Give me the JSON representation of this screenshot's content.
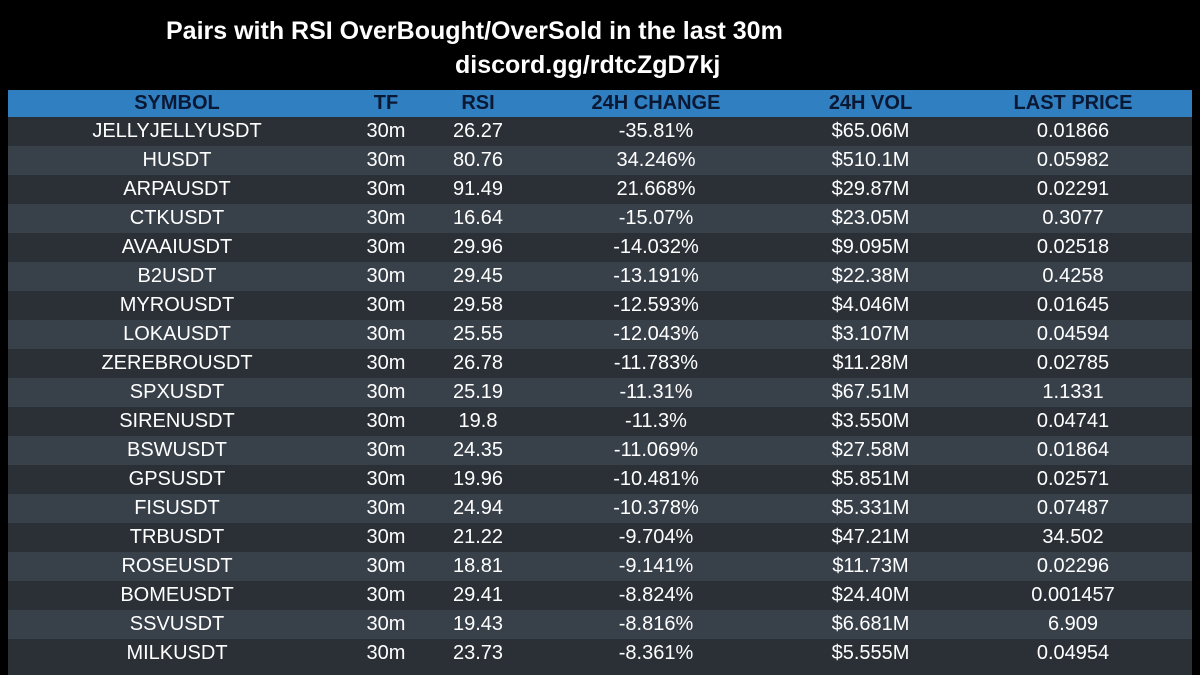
{
  "header": {
    "title": "Pairs with RSI OverBought/OverSold in the last 30m",
    "subtitle": "discord.gg/rdtcZgD7kj"
  },
  "colors": {
    "background": "#000000",
    "header_row": "#2f7fc1",
    "header_text": "#0b1833",
    "row_dark": "#2a3036",
    "row_light": "#38404a",
    "cell_text": "#ffffff"
  },
  "table": {
    "columns": [
      "SYMBOL",
      "TF",
      "RSI",
      "24H CHANGE",
      "24H VOL",
      "LAST PRICE"
    ],
    "rows": [
      [
        "JELLYJELLYUSDT",
        "30m",
        "26.27",
        "-35.81%",
        "$65.06M",
        "0.01866"
      ],
      [
        "HUSDT",
        "30m",
        "80.76",
        "34.246%",
        "$510.1M",
        "0.05982"
      ],
      [
        "ARPAUSDT",
        "30m",
        "91.49",
        "21.668%",
        "$29.87M",
        "0.02291"
      ],
      [
        "CTKUSDT",
        "30m",
        "16.64",
        "-15.07%",
        "$23.05M",
        "0.3077"
      ],
      [
        "AVAAIUSDT",
        "30m",
        "29.96",
        "-14.032%",
        "$9.095M",
        "0.02518"
      ],
      [
        "B2USDT",
        "30m",
        "29.45",
        "-13.191%",
        "$22.38M",
        "0.4258"
      ],
      [
        "MYROUSDT",
        "30m",
        "29.58",
        "-12.593%",
        "$4.046M",
        "0.01645"
      ],
      [
        "LOKAUSDT",
        "30m",
        "25.55",
        "-12.043%",
        "$3.107M",
        "0.04594"
      ],
      [
        "ZEREBROUSDT",
        "30m",
        "26.78",
        "-11.783%",
        "$11.28M",
        "0.02785"
      ],
      [
        "SPXUSDT",
        "30m",
        "25.19",
        "-11.31%",
        "$67.51M",
        "1.1331"
      ],
      [
        "SIRENUSDT",
        "30m",
        "19.8",
        "-11.3%",
        "$3.550M",
        "0.04741"
      ],
      [
        "BSWUSDT",
        "30m",
        "24.35",
        "-11.069%",
        "$27.58M",
        "0.01864"
      ],
      [
        "GPSUSDT",
        "30m",
        "19.96",
        "-10.481%",
        "$5.851M",
        "0.02571"
      ],
      [
        "FISUSDT",
        "30m",
        "24.94",
        "-10.378%",
        "$5.331M",
        "0.07487"
      ],
      [
        "TRBUSDT",
        "30m",
        "21.22",
        "-9.704%",
        "$47.21M",
        "34.502"
      ],
      [
        "ROSEUSDT",
        "30m",
        "18.81",
        "-9.141%",
        "$11.73M",
        "0.02296"
      ],
      [
        "BOMEUSDT",
        "30m",
        "29.41",
        "-8.824%",
        "$24.40M",
        "0.001457"
      ],
      [
        "SSVUSDT",
        "30m",
        "19.43",
        "-8.816%",
        "$6.681M",
        "6.909"
      ],
      [
        "MILKUSDT",
        "30m",
        "23.73",
        "-8.361%",
        "$5.555M",
        "0.04954"
      ]
    ]
  }
}
